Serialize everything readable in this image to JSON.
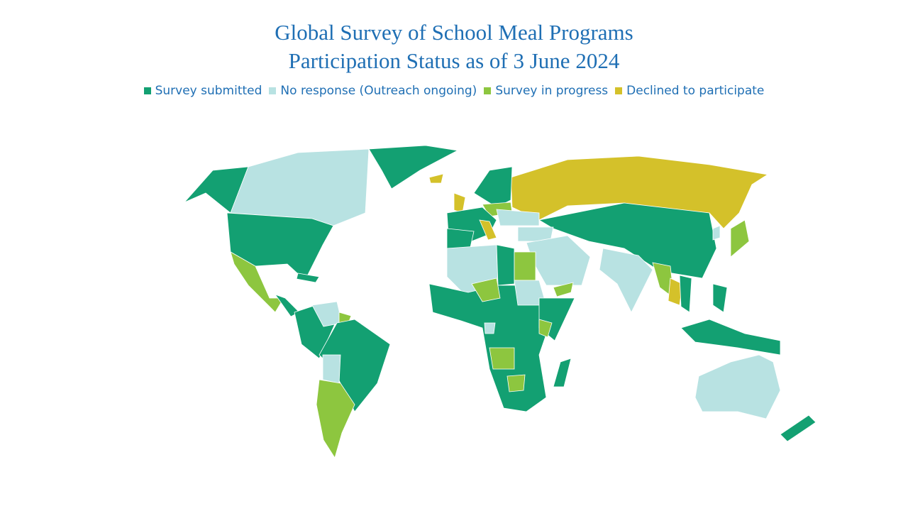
{
  "header": {
    "title_lines": [
      "Global Survey of School Meal Programs",
      "Participation Status as of 3 June 2024"
    ]
  },
  "legend": [
    {
      "label": "Survey submitted",
      "color": "#13a072"
    },
    {
      "label": "No response (Outreach ongoing)",
      "color": "#b8e2e2"
    },
    {
      "label": "Survey in progress",
      "color": "#8dc63f"
    },
    {
      "label": "Declined to participate",
      "color": "#d4c12a"
    }
  ]
}
